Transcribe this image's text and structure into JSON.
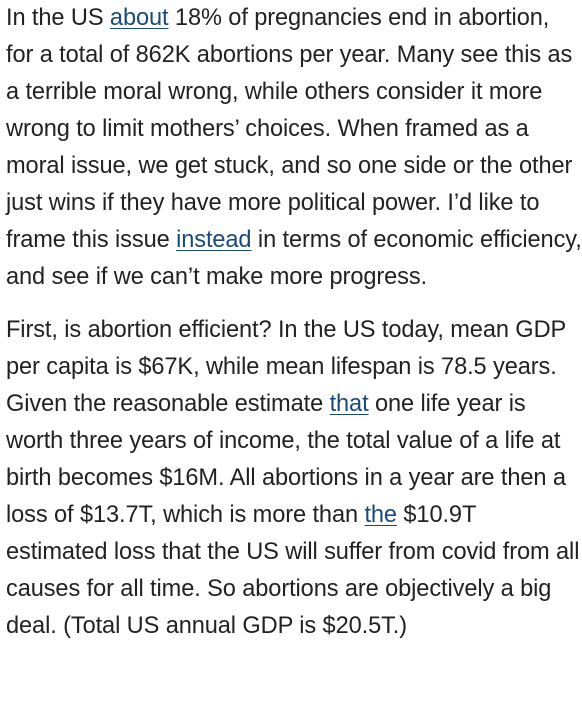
{
  "article": {
    "paragraph_1": {
      "t1": "In the US ",
      "link_about": "about",
      "t2": " 18% of pregnancies end in abortion, for a total of 862K abortions per year. Many see this as a terrible moral wrong, while others consider it more wrong to limit mothers’ choices. When framed as a moral issue, we get stuck, and so one side or the other just wins if they have more political power. I’d like to frame this issue ",
      "link_instead": "instead",
      "t3": " in terms of economic efficiency, and see if we can’t make more progress."
    },
    "paragraph_2": {
      "t1": "First, is abortion efficient? In the US today, mean GDP per capita is $67K, while mean lifespan is 78.5 years. Given the reasonable estimate ",
      "link_that": "that",
      "t2": " one life year is worth three years of income, the total value of a life at birth becomes $16M. All abortions in a year are then a loss of $13.7T, which is more than ",
      "link_the": "the",
      "t3": " $10.9T estimated loss that the US will suffer from covid from all causes for all time. So abortions are objectively a big deal. (Total US annual GDP is $20.5T.)"
    }
  },
  "colors": {
    "text": "#222222",
    "link": "#1a4a7a",
    "background": "#ffffff"
  }
}
